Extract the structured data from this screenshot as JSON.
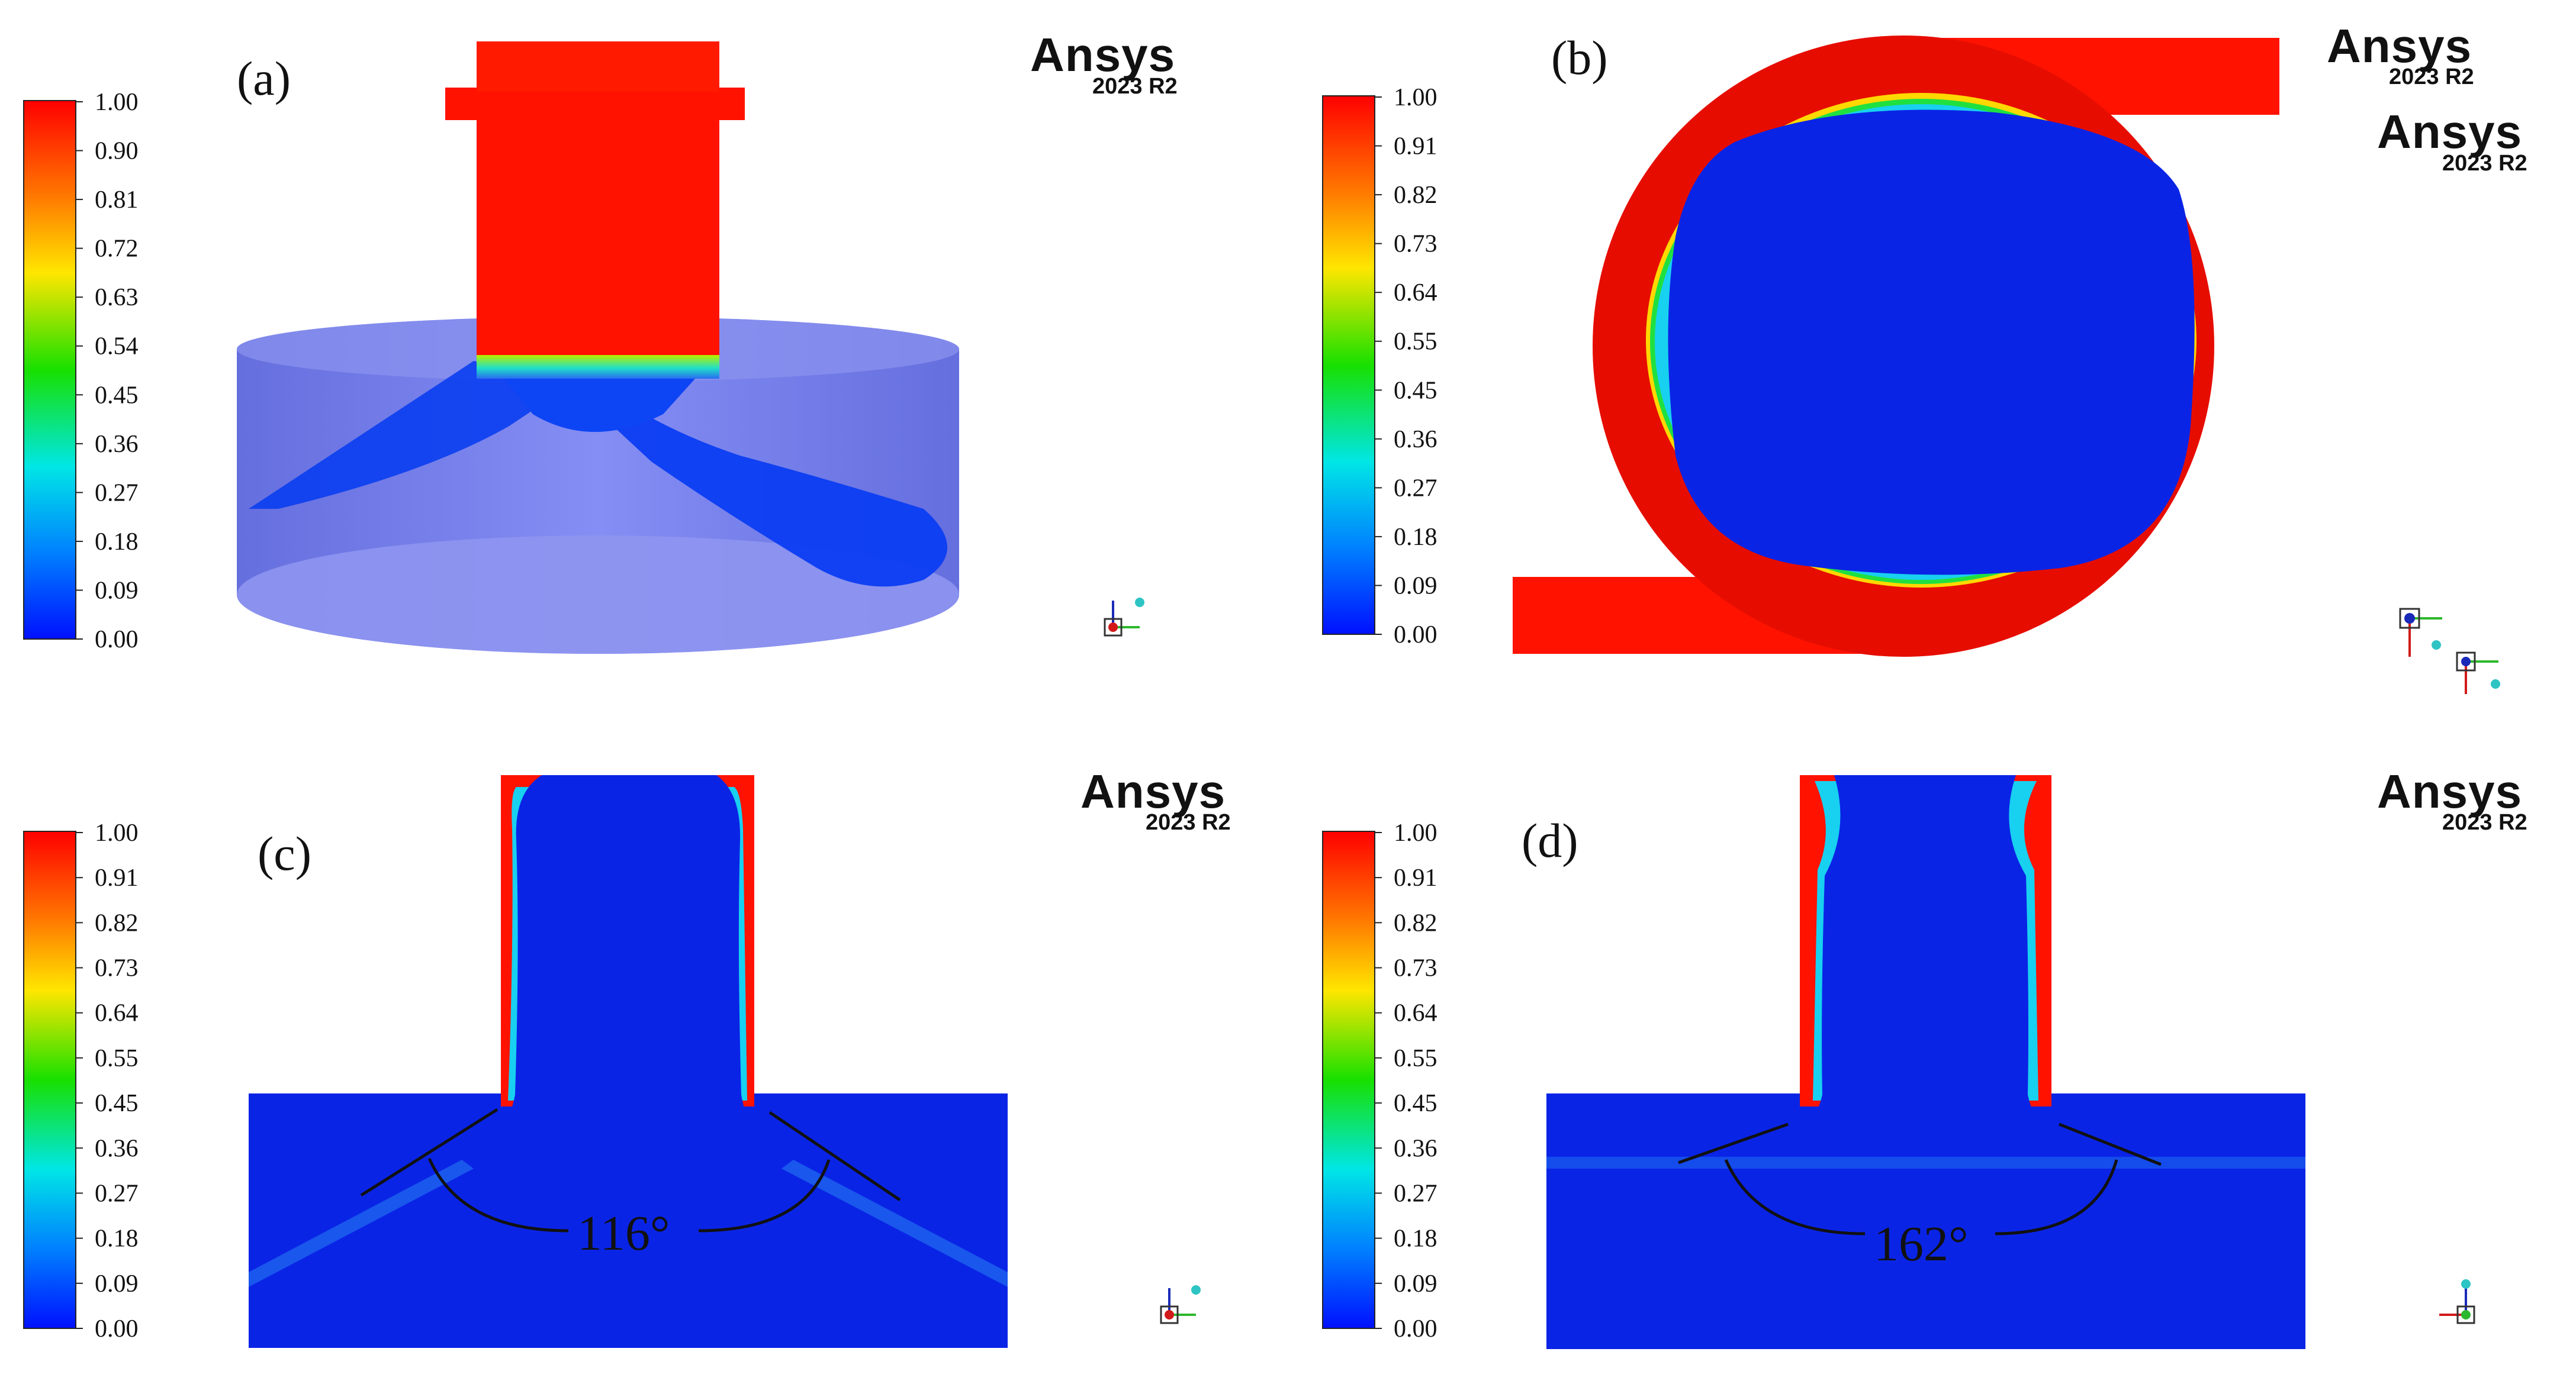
{
  "colors": {
    "phase_red": "#ff1200",
    "phase_blue": "#0a24e6",
    "translucent_blue": "#5c6af0"
  },
  "logo": {
    "brand": "Ansys",
    "version": "2023 R2"
  },
  "panels": [
    {
      "id": "a",
      "label": "(a)",
      "colorbar_ticks": [
        "1.00",
        "0.90",
        "0.81",
        "0.72",
        "0.63",
        "0.54",
        "0.45",
        "0.36",
        "0.27",
        "0.18",
        "0.09",
        "0.00"
      ]
    },
    {
      "id": "b",
      "label": "(b)",
      "colorbar_ticks": [
        "1.00",
        "0.91",
        "0.82",
        "0.73",
        "0.64",
        "0.55",
        "0.45",
        "0.36",
        "0.27",
        "0.18",
        "0.09",
        "0.00"
      ]
    },
    {
      "id": "c",
      "label": "(c)",
      "angle_text": "116°",
      "colorbar_ticks": [
        "1.00",
        "0.91",
        "0.82",
        "0.73",
        "0.64",
        "0.55",
        "0.45",
        "0.36",
        "0.27",
        "0.18",
        "0.09",
        "0.00"
      ]
    },
    {
      "id": "d",
      "label": "(d)",
      "angle_text": "162°",
      "colorbar_ticks": [
        "1.00",
        "0.91",
        "0.82",
        "0.73",
        "0.64",
        "0.55",
        "0.45",
        "0.36",
        "0.27",
        "0.18",
        "0.09",
        "0.00"
      ]
    }
  ]
}
